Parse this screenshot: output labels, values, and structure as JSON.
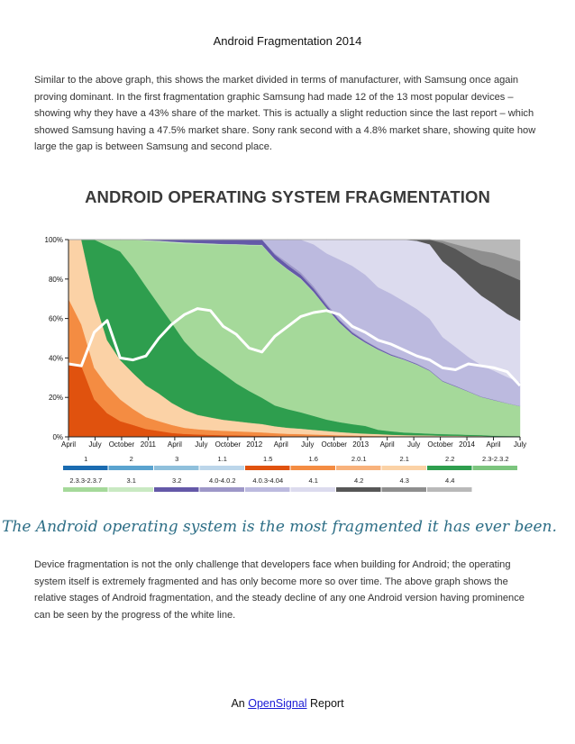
{
  "page": {
    "title": "Android Fragmentation 2014",
    "intro": "Similar to the above graph, this shows the market divided in terms of manufacturer, with Samsung once again proving dominant. In the first fragmentation graphic Samsung had made 12 of the 13 most popular devices – showing why they have a 43% share of the market. This is actually a slight reduction since the last report – which showed Samsung having a 47.5% market share. Sony rank second with a 4.8% market share, showing quite how large the gap is between Samsung and second place.",
    "tagline": "The Android operating system is the most fragmented it has ever been.",
    "body": "Device fragmentation is not the only challenge that developers face when building for Android; the operating system itself is extremely fragmented and has only become more so over time. The above graph shows the relative stages of Android fragmentation, and the steady decline of any one Android version having prominence can be seen by the progress of the white line.",
    "footer_prefix": "An ",
    "footer_link": "OpenSignal",
    "footer_suffix": " Report"
  },
  "chart_data": {
    "type": "area",
    "stacked": true,
    "normalized": true,
    "title": "ANDROID OPERATING SYSTEM FRAGMENTATION",
    "x_labels": [
      "April",
      "July",
      "October",
      "2011",
      "April",
      "July",
      "October",
      "2012",
      "April",
      "July",
      "October",
      "2013",
      "April",
      "July",
      "October",
      "2014",
      "April",
      "July"
    ],
    "y_ticks": [
      "0%",
      "20%",
      "40%",
      "60%",
      "80%",
      "100%"
    ],
    "ylim": [
      0,
      100
    ],
    "x": [
      0,
      0.5,
      1,
      1.5,
      2,
      2.5,
      3,
      3.5,
      4,
      4.5,
      5,
      5.5,
      6,
      6.5,
      7,
      7.5,
      8,
      8.5,
      9,
      9.5,
      10,
      10.5,
      11,
      11.5,
      12,
      12.5,
      13,
      13.5,
      14,
      14.5,
      15,
      15.5,
      16,
      16.5,
      17,
      17.5
    ],
    "series": [
      {
        "name": "1",
        "color": "#1a6bb0",
        "values": [
          0,
          0,
          0,
          0,
          0,
          0,
          0,
          0,
          0,
          0,
          0,
          0,
          0,
          0,
          0,
          0,
          0,
          0,
          0,
          0,
          0,
          0,
          0,
          0,
          0,
          0,
          0,
          0,
          0,
          0,
          0,
          0,
          0,
          0,
          0,
          0
        ]
      },
      {
        "name": "2",
        "color": "#5aa3cf",
        "values": [
          0,
          0,
          0,
          0,
          0,
          0,
          0,
          0,
          0,
          0,
          0,
          0,
          0,
          0,
          0,
          0,
          0,
          0,
          0,
          0,
          0,
          0,
          0,
          0,
          0,
          0,
          0,
          0,
          0,
          0,
          0,
          0,
          0,
          0,
          0,
          0
        ]
      },
      {
        "name": "3",
        "color": "#8fc0dc",
        "values": [
          0,
          0,
          0,
          0,
          0,
          0,
          0,
          0,
          0,
          0,
          0,
          0,
          0,
          0,
          0,
          0,
          0,
          0,
          0,
          0,
          0,
          0,
          0,
          0,
          0,
          0,
          0,
          0,
          0,
          0,
          0,
          0,
          0,
          0,
          0,
          0
        ]
      },
      {
        "name": "1.1",
        "color": "#bcd6ea",
        "values": [
          0,
          0,
          0,
          0,
          0,
          0,
          0,
          0,
          0,
          0,
          0,
          0,
          0,
          0,
          0,
          0,
          0,
          0,
          0,
          0,
          0,
          0,
          0,
          0,
          0,
          0,
          0,
          0,
          0,
          0,
          0,
          0,
          0,
          0,
          0,
          0
        ]
      },
      {
        "name": "1.5",
        "color": "#e0520e",
        "values": [
          37,
          36,
          19,
          12,
          8,
          6,
          4,
          3,
          2,
          1.5,
          1.2,
          1,
          0.8,
          0.7,
          0.6,
          0.5,
          0.4,
          0.3,
          0.3,
          0.2,
          0.2,
          0.1,
          0.1,
          0.1,
          0.1,
          0,
          0,
          0,
          0,
          0,
          0,
          0,
          0,
          0,
          0,
          0
        ]
      },
      {
        "name": "1.6",
        "color": "#f48c42",
        "values": [
          33,
          21,
          16,
          14,
          11,
          8,
          6,
          5,
          4,
          3,
          2.5,
          2.2,
          2,
          1.8,
          1.6,
          1.4,
          1.2,
          1,
          0.9,
          0.8,
          0.7,
          0.6,
          0.5,
          0.4,
          0.3,
          0.3,
          0.2,
          0.2,
          0.1,
          0.1,
          0.1,
          0.1,
          0.1,
          0,
          0,
          0
        ]
      },
      {
        "name": "2.0.1",
        "color": "#f8b27c",
        "values": [
          0,
          0,
          0,
          0,
          0,
          0,
          0,
          0,
          0,
          0,
          0,
          0,
          0,
          0,
          0,
          0,
          0,
          0,
          0,
          0,
          0,
          0,
          0,
          0,
          0,
          0,
          0,
          0,
          0,
          0,
          0,
          0,
          0,
          0,
          0,
          0
        ]
      },
      {
        "name": "2.1",
        "color": "#fbd2a6",
        "values": [
          30,
          43,
          35,
          23,
          20,
          18,
          16,
          14,
          11,
          9,
          7,
          6,
          5,
          4.5,
          4,
          3.5,
          3,
          2.6,
          2.3,
          2,
          1.7,
          1.5,
          1.2,
          1,
          0.9,
          0.7,
          0.6,
          0.5,
          0.5,
          0.4,
          0.4,
          0.3,
          0.3,
          0.2,
          0.2,
          0.2
        ]
      },
      {
        "name": "2.2",
        "color": "#2e9e4e",
        "values": [
          0,
          0,
          30,
          48,
          55,
          53,
          50,
          45,
          40,
          34,
          29,
          25,
          21,
          17,
          14,
          11,
          9,
          8,
          7,
          6,
          5,
          4.5,
          4,
          3.5,
          2,
          1.6,
          1.2,
          1,
          0.8,
          0.7,
          0.6,
          0.5,
          0.4,
          0.3,
          0.2,
          0.2
        ]
      },
      {
        "name": "2.3-2.3.2",
        "color": "#7cc57e",
        "values": [
          0,
          0,
          0,
          0,
          0,
          0,
          0,
          0,
          0,
          0,
          0,
          0,
          0,
          0,
          0,
          0,
          0,
          0,
          0,
          0,
          0,
          0,
          0,
          0,
          0,
          0,
          0,
          0,
          0,
          0,
          0,
          0,
          0,
          0,
          0,
          0
        ]
      },
      {
        "name": "2.3.3-2.3.7",
        "color": "#a5d99a",
        "values": [
          0,
          0,
          0,
          3,
          6,
          14,
          23,
          32,
          40,
          49,
          54,
          57,
          59,
          62,
          64,
          64,
          63,
          60,
          57,
          53,
          49,
          45,
          41,
          38,
          37,
          35,
          33,
          30,
          27,
          23,
          21,
          19,
          17,
          16,
          15,
          14
        ]
      },
      {
        "name": "3.1",
        "color": "#c9e9c2",
        "values": [
          0,
          0,
          0,
          0,
          0,
          0,
          0.3,
          0.4,
          0.5,
          0.5,
          0.4,
          0.4,
          0.3,
          0.3,
          0.3,
          0.2,
          0.2,
          0.2,
          0.2,
          0.2,
          0.1,
          0.1,
          0.1,
          0.1,
          0.1,
          0.1,
          0.1,
          0.1,
          0,
          0,
          0,
          0,
          0,
          0,
          0,
          0
        ]
      },
      {
        "name": "3.2",
        "color": "#6459a8",
        "values": [
          0,
          0,
          0,
          0,
          0,
          0,
          0.3,
          0.6,
          1,
          1.4,
          1.6,
          1.8,
          2,
          2,
          2.2,
          2.2,
          2,
          1.8,
          1.6,
          1.4,
          1.2,
          1,
          0.8,
          0.6,
          0.5,
          0.4,
          0.3,
          0.3,
          0.2,
          0.2,
          0.2,
          0.1,
          0.1,
          0.1,
          0.1,
          0.1
        ]
      },
      {
        "name": "4.0-4.0.2",
        "color": "#9d97c8",
        "values": [
          0,
          0,
          0,
          0,
          0,
          0,
          0,
          0,
          0,
          0,
          0,
          0,
          0,
          0,
          0,
          0,
          0.5,
          1,
          1,
          1,
          0.8,
          0.6,
          0.5,
          0.4,
          0.3,
          0.2,
          0.2,
          0.2,
          0.1,
          0.1,
          0.1,
          0.1,
          0.1,
          0.1,
          0,
          0
        ]
      },
      {
        "name": "4.0.3-4.04",
        "color": "#bcbadf",
        "values": [
          0,
          0,
          0,
          0,
          0,
          0,
          0,
          0,
          0,
          0,
          0,
          0,
          0,
          0,
          0,
          0,
          6,
          10,
          14,
          18,
          22,
          27,
          30,
          30,
          28,
          28,
          26,
          24,
          22,
          19,
          17,
          15,
          14,
          13,
          12,
          11
        ]
      },
      {
        "name": "4.1",
        "color": "#dcdbee",
        "values": [
          0,
          0,
          0,
          0,
          0,
          0,
          0,
          0,
          0,
          0,
          0,
          0,
          0,
          0,
          0,
          0,
          0,
          0,
          0,
          2,
          6,
          9,
          12,
          16,
          22,
          25,
          28,
          30,
          32,
          33,
          33,
          32,
          31,
          30,
          29,
          29
        ]
      },
      {
        "name": "4.2",
        "color": "#575757",
        "values": [
          0,
          0,
          0,
          0,
          0,
          0,
          0,
          0,
          0,
          0,
          0,
          0,
          0,
          0,
          0,
          0,
          0,
          0,
          0,
          0,
          0,
          0,
          0,
          0,
          0,
          0,
          0,
          0.5,
          2,
          8,
          10,
          12,
          14,
          16,
          18,
          19
        ]
      },
      {
        "name": "4.3",
        "color": "#8e8e8e",
        "values": [
          0,
          0,
          0,
          0,
          0,
          0,
          0,
          0,
          0,
          0,
          0,
          0,
          0,
          0,
          0,
          0,
          0,
          0,
          0,
          0,
          0,
          0,
          0,
          0,
          0,
          0,
          0,
          0,
          0,
          1,
          2,
          4,
          6,
          7,
          8,
          9
        ]
      },
      {
        "name": "4.4",
        "color": "#b9b9b9",
        "values": [
          0,
          0,
          0,
          0,
          0,
          0,
          0,
          0,
          0,
          0,
          0,
          0,
          0,
          0,
          0,
          0,
          0,
          0,
          0,
          0,
          0,
          0,
          0,
          0,
          0,
          0,
          0,
          0,
          0,
          0.5,
          2,
          3.5,
          5,
          6,
          8,
          10
        ]
      }
    ],
    "max_share_line": {
      "color": "#ffffff",
      "values": [
        37,
        36,
        53,
        59,
        40,
        39,
        41,
        50,
        57,
        62,
        65,
        64,
        56,
        52,
        45,
        43,
        51,
        56,
        61,
        63,
        64,
        62,
        56,
        53,
        49,
        47,
        44,
        41,
        39,
        35,
        34,
        37,
        36,
        35,
        33,
        26
      ]
    },
    "legend": [
      [
        "1",
        "2",
        "3",
        "1.1",
        "1.5",
        "1.6",
        "2.0.1",
        "2.1",
        "2.2",
        "2.3-2.3.2"
      ],
      [
        "2.3.3-2.3.7",
        "3.1",
        "3.2",
        "4.0-4.0.2",
        "4.0.3-4.04",
        "4.1",
        "4.2",
        "4.3",
        "4.4"
      ]
    ]
  }
}
